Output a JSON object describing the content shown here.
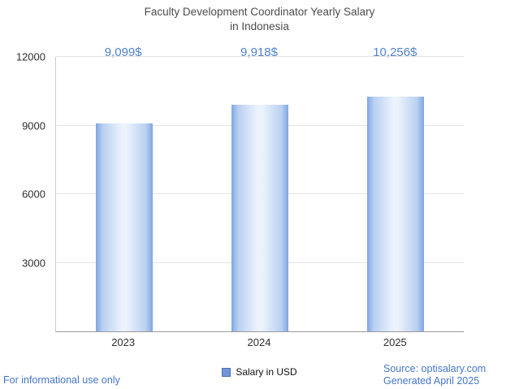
{
  "title": {
    "line1": "Faculty Development Coordinator Yearly Salary",
    "line2": "in Indonesia"
  },
  "chart_data": {
    "type": "bar",
    "title": "Faculty Development Coordinator Yearly Salary in Indonesia",
    "categories": [
      "2023",
      "2024",
      "2025"
    ],
    "values": [
      9099,
      9918,
      10256
    ],
    "value_labels": [
      "9,099$",
      "9,918$",
      "10,256$"
    ],
    "series_name": "Salary in USD",
    "xlabel": "",
    "ylabel": "",
    "ylim": [
      0,
      12000
    ],
    "yticks": [
      3000,
      6000,
      9000,
      12000
    ],
    "grid": true,
    "legend_position": "bottom"
  },
  "legend": {
    "label": "Salary in USD",
    "swatch_color": "#7496d6"
  },
  "footer": {
    "left": "For informational use only",
    "source": "Source: optisalary.com",
    "generated": "Generated April 2025"
  },
  "colors": {
    "accent_blue": "#4676c8",
    "value_label_blue": "#5083cd",
    "bar_edge": "#7fa6e2",
    "bar_center": "#ecf3fd"
  }
}
